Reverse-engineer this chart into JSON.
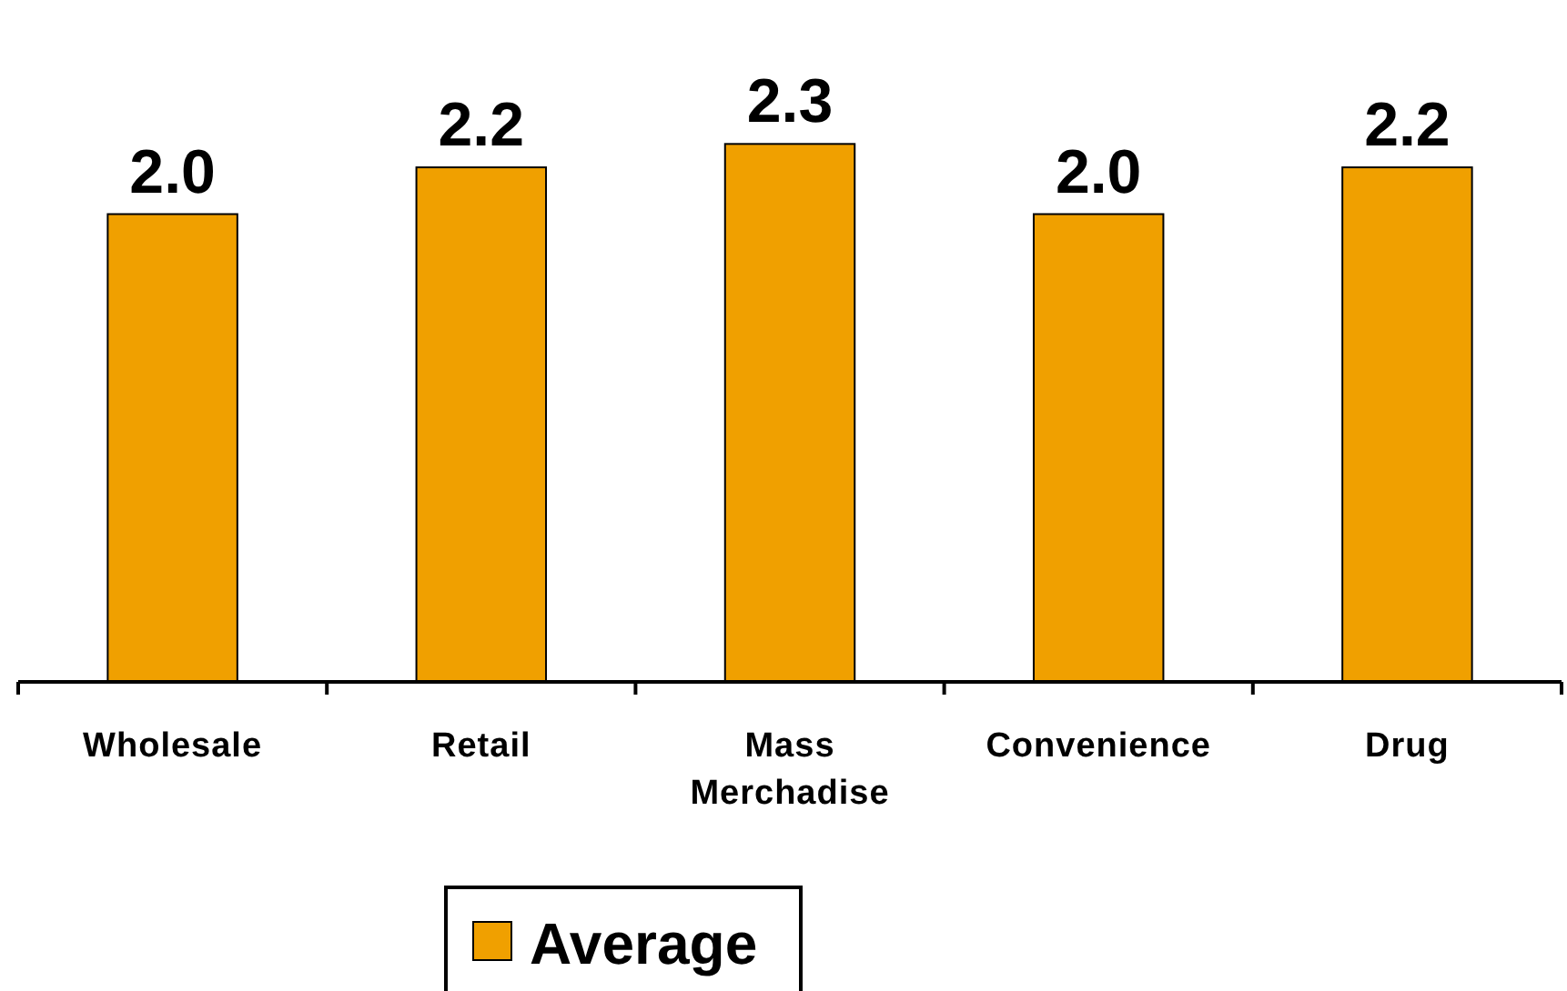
{
  "chart_data": {
    "type": "bar",
    "categories": [
      "Wholesale",
      "Retail",
      "Mass Merchadise",
      "Convenience",
      "Drug"
    ],
    "series": [
      {
        "name": "Average",
        "color": "#f0a000",
        "values": [
          2.0,
          2.2,
          2.3,
          2.0,
          2.2
        ],
        "value_labels": [
          "2.0",
          "2.2",
          "2.3",
          "2.0",
          "2.2"
        ]
      }
    ],
    "legend": "bottom"
  }
}
